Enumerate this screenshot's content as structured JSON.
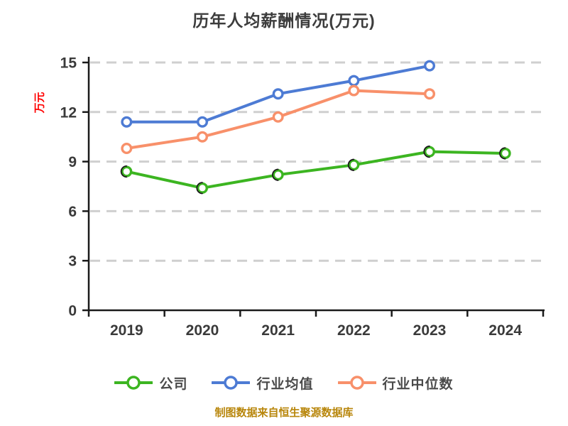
{
  "page": {
    "background": "#FFFFFF"
  },
  "title": "历年人均薪酬情况(万元)",
  "source_note": "制图数据来自恒生聚源数据库",
  "source_note_color": "#B8860B",
  "chart_data": {
    "type": "line",
    "title": "历年人均薪酬情况(万元)",
    "ylabel": "万元",
    "ylabel_color": "#FF0000",
    "categories": [
      "2019",
      "2020",
      "2021",
      "2022",
      "2023",
      "2024"
    ],
    "yticks": [
      0,
      3,
      6,
      9,
      12,
      15
    ],
    "ylim": [
      0,
      15
    ],
    "grid": "horizontal-dashed",
    "grid_color": "#CFCFCF",
    "axis_color": "#1A1A1A",
    "tick_label_color": "#3A3A3A",
    "legend_position": "bottom",
    "marker": "circle-white-fill",
    "series": [
      {
        "name": "公司",
        "color": "#3CB521",
        "values": [
          8.4,
          7.4,
          8.2,
          8.8,
          9.6,
          9.5
        ]
      },
      {
        "name": "行业均值",
        "color": "#4D7BD4",
        "values": [
          11.4,
          11.4,
          13.1,
          13.9,
          14.8,
          null
        ]
      },
      {
        "name": "行业中位数",
        "color": "#F8906A",
        "values": [
          9.8,
          10.5,
          11.7,
          13.3,
          13.1,
          null
        ]
      }
    ]
  }
}
